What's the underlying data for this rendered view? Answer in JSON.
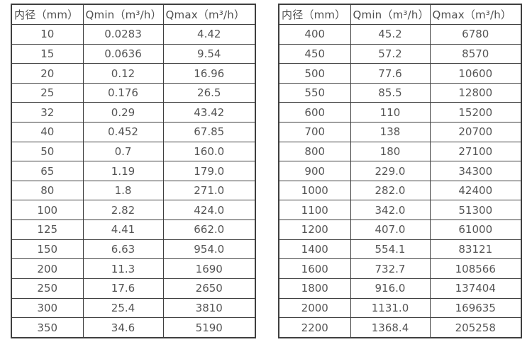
{
  "page": {
    "background": "#ffffff"
  },
  "colors": {
    "border": "#3f3f3f",
    "header_text": "#4f4f4f",
    "cell_text": "#555555"
  },
  "tables": [
    {
      "name": "flow-table-small-diameters",
      "headers": [
        "内径（mm）",
        "Qmin（m³/h）",
        "Qmax（m³/h）"
      ],
      "rows": [
        [
          "10",
          "0.0283",
          "4.42"
        ],
        [
          "15",
          "0.0636",
          "9.54"
        ],
        [
          "20",
          "0.12",
          "16.96"
        ],
        [
          "25",
          "0.176",
          "26.5"
        ],
        [
          "32",
          "0.29",
          "43.42"
        ],
        [
          "40",
          "0.452",
          "67.85"
        ],
        [
          "50",
          "0.7",
          "160.0"
        ],
        [
          "65",
          "1.19",
          "179.0"
        ],
        [
          "80",
          "1.8",
          "271.0"
        ],
        [
          "100",
          "2.82",
          "424.0"
        ],
        [
          "125",
          "4.41",
          "662.0"
        ],
        [
          "150",
          "6.63",
          "954.0"
        ],
        [
          "200",
          "11.3",
          "1690"
        ],
        [
          "250",
          "17.6",
          "2650"
        ],
        [
          "300",
          "25.4",
          "3810"
        ],
        [
          "350",
          "34.6",
          "5190"
        ]
      ]
    },
    {
      "name": "flow-table-large-diameters",
      "headers": [
        "内径（mm）",
        "Qmin（m³/h）",
        "Qmax（m³/h）"
      ],
      "rows": [
        [
          "400",
          "45.2",
          "6780"
        ],
        [
          "450",
          "57.2",
          "8570"
        ],
        [
          "500",
          "77.6",
          "10600"
        ],
        [
          "550",
          "85.5",
          "12800"
        ],
        [
          "600",
          "110",
          "15200"
        ],
        [
          "700",
          "138",
          "20700"
        ],
        [
          "800",
          "180",
          "27100"
        ],
        [
          "900",
          "229.0",
          "34300"
        ],
        [
          "1000",
          "282.0",
          "42400"
        ],
        [
          "1100",
          "342.0",
          "51300"
        ],
        [
          "1200",
          "407.0",
          "61000"
        ],
        [
          "1400",
          "554.1",
          "83121"
        ],
        [
          "1600",
          "732.7",
          "108566"
        ],
        [
          "1800",
          "916.0",
          "137404"
        ],
        [
          "2000",
          "1131.0",
          "169635"
        ],
        [
          "2200",
          "1368.4",
          "205258"
        ]
      ]
    }
  ]
}
